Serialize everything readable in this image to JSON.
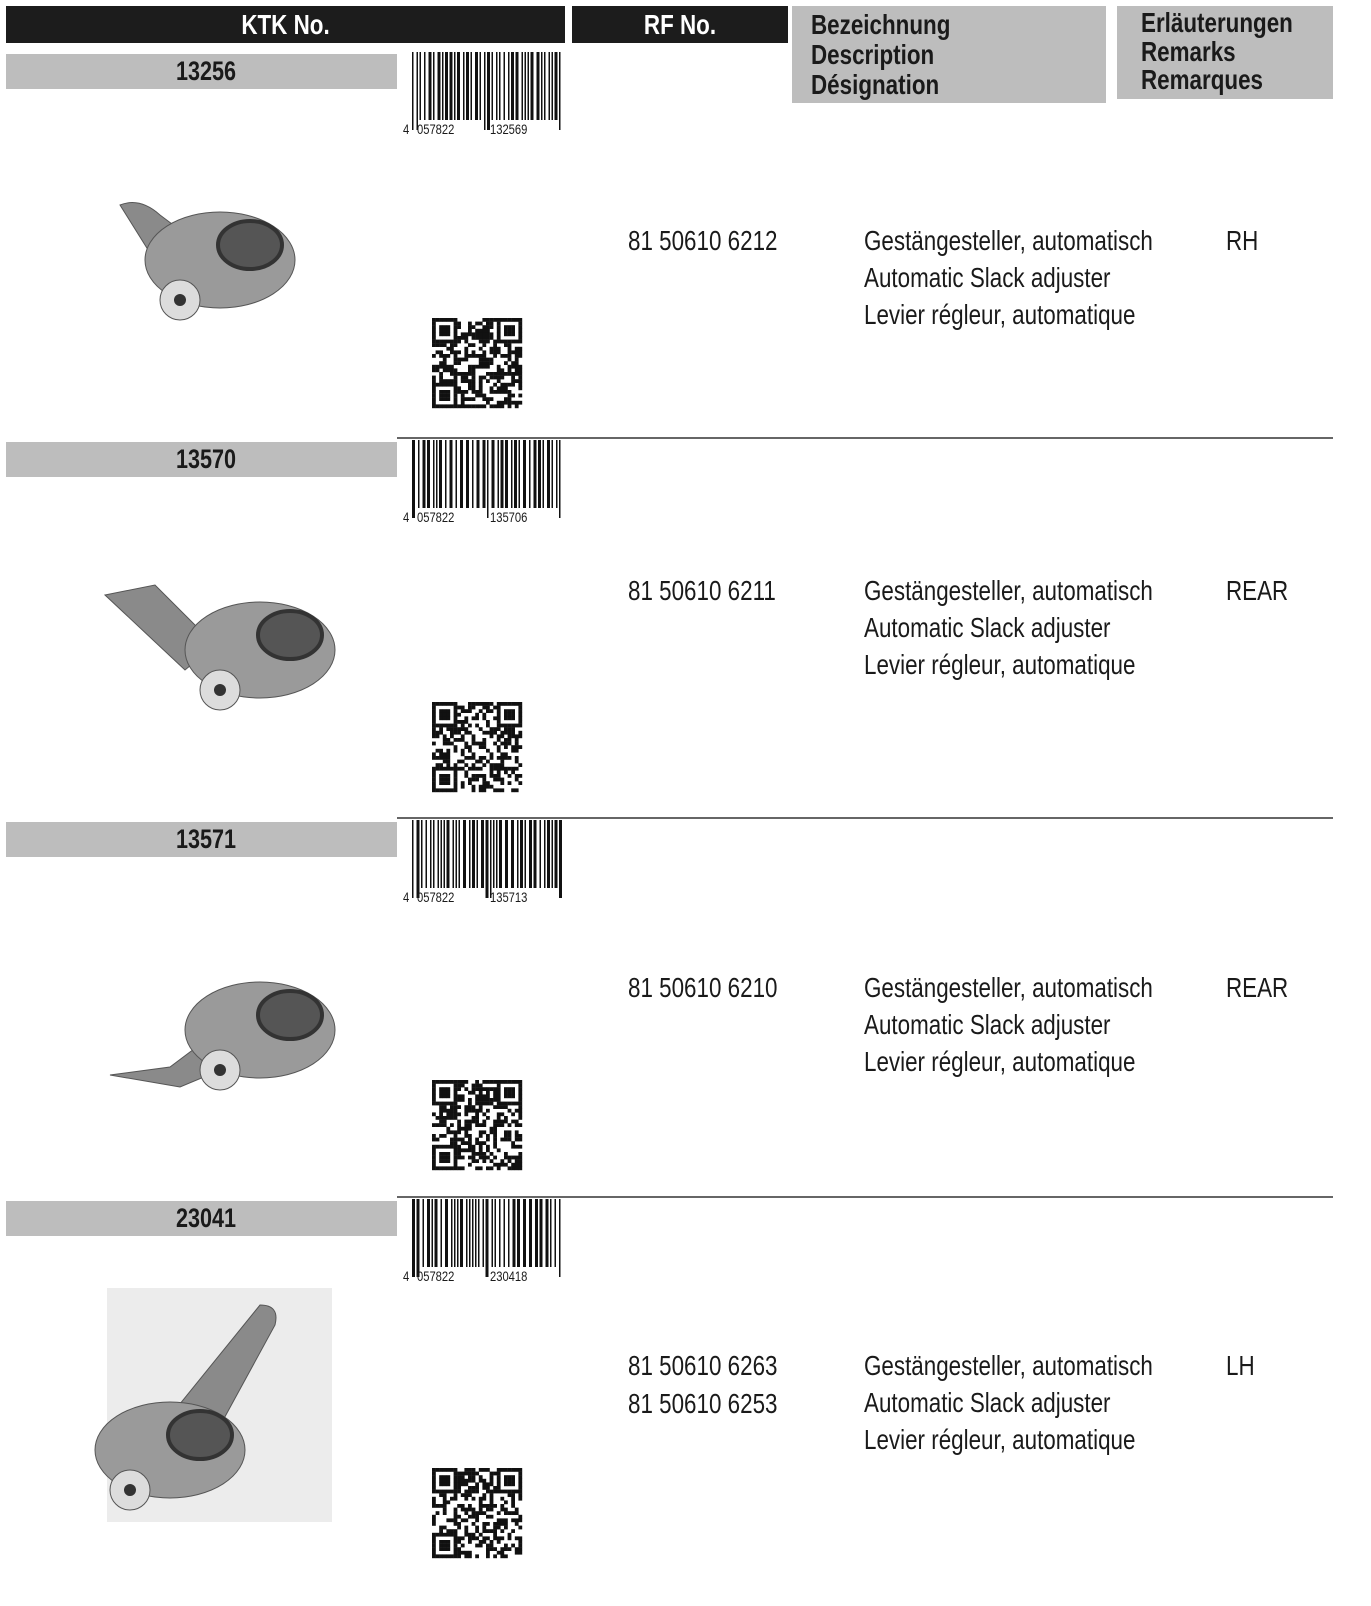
{
  "header": {
    "ktk_no": "KTK No.",
    "rf_no": "RF No.",
    "description": [
      "Bezeichnung",
      "Description",
      "Désignation"
    ],
    "remarks": [
      "Erläuterungen",
      "Remarks",
      "Remarques"
    ]
  },
  "items": [
    {
      "ktk": "13256",
      "barcode": [
        "4",
        "057822",
        "132569"
      ],
      "rf": [
        "81 50610 6212"
      ],
      "description": [
        "Gestängesteller, automatisch",
        "Automatic Slack adjuster",
        "Levier régleur, automatique"
      ],
      "remark": "RH"
    },
    {
      "ktk": "13570",
      "barcode": [
        "4",
        "057822",
        "135706"
      ],
      "rf": [
        "81 50610 6211"
      ],
      "description": [
        "Gestängesteller, automatisch",
        "Automatic Slack adjuster",
        "Levier régleur, automatique"
      ],
      "remark": "REAR"
    },
    {
      "ktk": "13571",
      "barcode": [
        "4",
        "057822",
        "135713"
      ],
      "rf": [
        "81 50610 6210"
      ],
      "description": [
        "Gestängesteller, automatisch",
        "Automatic Slack adjuster",
        "Levier régleur, automatique"
      ],
      "remark": "REAR"
    },
    {
      "ktk": "23041",
      "barcode": [
        "4",
        "057822",
        "230418"
      ],
      "rf": [
        "81 50610 6263",
        "81 50610 6253"
      ],
      "description": [
        "Gestängesteller, automatisch",
        "Automatic Slack adjuster",
        "Levier régleur, automatique"
      ],
      "remark": "LH"
    }
  ]
}
